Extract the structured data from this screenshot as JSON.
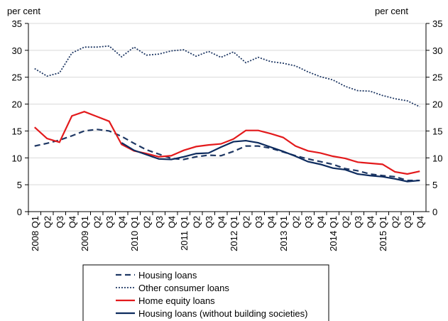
{
  "chart_data": {
    "type": "line",
    "ylabel": "per cent",
    "y2label": "per cent",
    "categories": [
      "2008 Q1",
      "Q2",
      "Q3",
      "Q4",
      "2009 Q1",
      "Q2",
      "Q3",
      "Q4",
      "2010 Q1",
      "Q2",
      "Q3",
      "Q4",
      "2011 Q1",
      "Q2",
      "Q3",
      "Q4",
      "2012 Q1",
      "Q2",
      "Q3",
      "Q4",
      "2013 Q1",
      "Q2",
      "Q3",
      "Q4",
      "2014 Q1",
      "Q2",
      "Q3",
      "Q4",
      "2015 Q1",
      "Q2",
      "Q3",
      "Q4"
    ],
    "series": [
      {
        "name": "Housing loans",
        "color": "#1f3864",
        "style": "dashed",
        "values": [
          12.2,
          12.7,
          13.3,
          14.1,
          15.0,
          15.3,
          15.0,
          14.0,
          12.7,
          11.5,
          10.7,
          9.9,
          9.7,
          10.2,
          10.5,
          10.4,
          11.2,
          12.2,
          12.2,
          11.8,
          11.1,
          10.4,
          9.8,
          9.3,
          8.8,
          8.0,
          7.6,
          7.0,
          6.7,
          6.5,
          5.8,
          5.8
        ]
      },
      {
        "name": "Other consumer loans",
        "color": "#1f3864",
        "style": "dotted",
        "values": [
          26.6,
          25.2,
          25.8,
          29.5,
          30.6,
          30.6,
          30.8,
          28.8,
          30.6,
          29.1,
          29.3,
          29.9,
          30.1,
          28.9,
          29.8,
          28.7,
          29.7,
          27.7,
          28.7,
          27.9,
          27.6,
          27.1,
          26.0,
          25.1,
          24.5,
          23.3,
          22.5,
          22.4,
          21.6,
          21.0,
          20.6,
          19.5
        ]
      },
      {
        "name": "Home equity loans",
        "color": "#e31a1c",
        "style": "solid",
        "values": [
          15.7,
          13.6,
          12.9,
          17.8,
          18.6,
          17.7,
          16.8,
          12.5,
          11.3,
          10.8,
          10.2,
          10.4,
          11.4,
          12.1,
          12.4,
          12.6,
          13.5,
          15.1,
          15.1,
          14.5,
          13.8,
          12.2,
          11.3,
          10.9,
          10.3,
          9.9,
          9.2,
          9.0,
          8.8,
          7.4,
          7.0,
          7.5
        ]
      },
      {
        "name": "Housing loans (without building societies)",
        "color": "#0d2b5e",
        "style": "solid",
        "values": [
          null,
          null,
          null,
          null,
          null,
          null,
          null,
          12.8,
          11.4,
          10.6,
          9.8,
          9.7,
          10.2,
          10.8,
          10.9,
          12.0,
          13.0,
          13.2,
          12.8,
          12.0,
          11.2,
          10.3,
          9.3,
          8.8,
          8.1,
          7.8,
          7.0,
          6.7,
          6.5,
          6.1,
          5.6,
          5.8
        ]
      }
    ],
    "ylim": [
      0,
      35
    ],
    "yticks": [
      0,
      5,
      10,
      15,
      20,
      25,
      30,
      35
    ],
    "grid": true
  }
}
